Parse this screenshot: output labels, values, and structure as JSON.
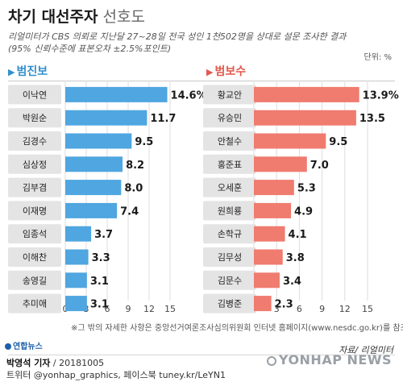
{
  "header": {
    "title": "차기 대선주자",
    "subtitle": "선호도",
    "desc_line1": "리얼미터가 CBS 의뢰로 지난달 27~28일 전국 성인 1천502명을 상대로 설문 조사한 결과",
    "desc_line2": "(95% 신뢰수준에 표본오차 ±2.5%포인트)",
    "unit": "단위: %"
  },
  "groups": {
    "left_title": "범진보",
    "right_title": "범보수"
  },
  "colors": {
    "left_bar": "#4fa6e0",
    "right_bar": "#f07b6f",
    "left_accent": "#2f8fcf",
    "right_accent": "#e2574c",
    "name_badge": "#e4e4e4",
    "grid": "#dddddd"
  },
  "chart_data": [
    {
      "type": "bar",
      "title": "범진보",
      "orientation": "horizontal",
      "categories": [
        "이낙연",
        "박원순",
        "김경수",
        "심상정",
        "김부겸",
        "이재명",
        "임종석",
        "이해찬",
        "송영길",
        "추미애"
      ],
      "values": [
        14.6,
        11.7,
        9.5,
        8.2,
        8.0,
        7.4,
        3.7,
        3.3,
        3.1,
        3.1
      ],
      "value_labels": [
        "14.6%",
        "11.7",
        "9.5",
        "8.2",
        "8.0",
        "7.4",
        "3.7",
        "3.3",
        "3.1",
        "3.1"
      ],
      "xlim": [
        0,
        15
      ],
      "ticks": [
        "0",
        "3",
        "6",
        "9",
        "12",
        "15"
      ],
      "grid": true
    },
    {
      "type": "bar",
      "title": "범보수",
      "orientation": "horizontal",
      "categories": [
        "황교안",
        "유승민",
        "안철수",
        "홍준표",
        "오세훈",
        "원희룡",
        "손학규",
        "김무성",
        "김문수",
        "김병준"
      ],
      "values": [
        13.9,
        13.5,
        9.5,
        7.0,
        5.3,
        4.9,
        4.1,
        3.8,
        3.4,
        2.3
      ],
      "value_labels": [
        "13.9%",
        "13.5",
        "9.5",
        "7.0",
        "5.3",
        "4.9",
        "4.1",
        "3.8",
        "3.4",
        "2.3"
      ],
      "xlim": [
        0,
        15
      ],
      "ticks": [
        "0",
        "3",
        "6",
        "9",
        "12",
        "15"
      ],
      "grid": true
    }
  ],
  "footer": {
    "footnote": "※그 밖의 자세한 사항은 중앙선거여론조사심의위원회 인터넷 홈페이지(www.nesdc.go.kr)를 참조",
    "logo": "연합뉴스",
    "source": "자료/ 리얼미터",
    "credit_name": "박영석 기자",
    "credit_date": " / 20181005",
    "credit_sns": "트위터 @yonhap_graphics, 페이스북 tuney.kr/LeYN1",
    "watermark": "YONHAP NEWS"
  }
}
